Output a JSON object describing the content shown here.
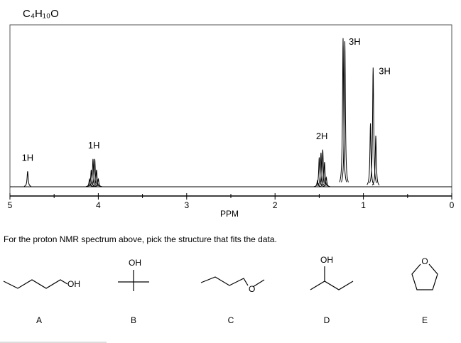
{
  "chart_data": {
    "type": "nmr",
    "title": "C₄H₁₀O",
    "xlabel": "PPM",
    "xlim": [
      5,
      0
    ],
    "xticks": [
      5,
      4,
      3,
      2,
      1,
      0
    ],
    "xminorticks": [
      4.5,
      3.5,
      2.5,
      1.5,
      0.5
    ],
    "ylim": [
      0,
      100
    ],
    "color": "#000000",
    "groups": [
      {
        "label": "1H",
        "ppm": [
          4.8
        ],
        "values": [
          10
        ]
      },
      {
        "label": "1H",
        "ppm": [
          4.1,
          4.08,
          4.06,
          4.04,
          4.02,
          4.0
        ],
        "values": [
          5,
          11,
          18,
          18,
          11,
          5
        ]
      },
      {
        "label": "2H",
        "ppm": [
          1.52,
          1.5,
          1.48,
          1.46,
          1.44,
          1.42
        ],
        "values": [
          4,
          19,
          22,
          24,
          16,
          6
        ]
      },
      {
        "label": "3H",
        "ppm": [
          1.23,
          1.21
        ],
        "values": [
          96,
          94
        ]
      },
      {
        "label": "3H",
        "ppm": [
          0.92,
          0.89,
          0.86
        ],
        "values": [
          41,
          77,
          33
        ]
      }
    ]
  },
  "question": {
    "text": "For the proton NMR spectrum above, pick the structure that fits the data.",
    "options": [
      {
        "letter": "A",
        "atom": "OH"
      },
      {
        "letter": "B",
        "atom": "OH"
      },
      {
        "letter": "C",
        "atom": "O"
      },
      {
        "letter": "D",
        "atom": "OH"
      },
      {
        "letter": "E",
        "atom": "O"
      }
    ]
  }
}
